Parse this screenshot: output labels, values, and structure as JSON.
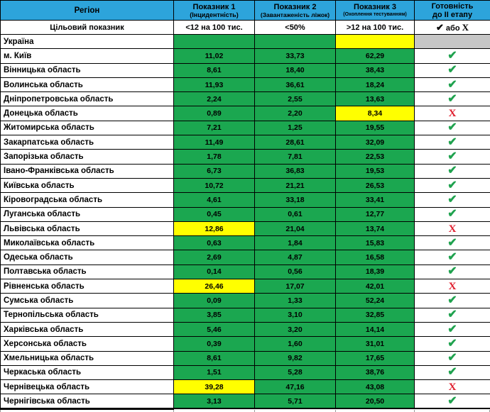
{
  "colors": {
    "header_blue": "#2DA4DB",
    "cell_green": "#1BA750",
    "cell_yellow": "#FFFF00",
    "cell_gray": "#C6C6C6",
    "check_green": "#1FA24E",
    "cross_red": "#E01F2F"
  },
  "symbols": {
    "check": "✔",
    "cross": "Х"
  },
  "header": {
    "region": "Регіон",
    "col1_title": "Показник 1",
    "col1_sub": "(Інцидентність)",
    "col2_title": "Показник 2",
    "col2_sub": "(Завантаженість ліжок)",
    "col3_title": "Показник 3",
    "col3_sub": "(Охоплення тестуванням)",
    "col4_line1": "Готовність",
    "col4_line2": "до II етапу"
  },
  "target_row": {
    "label": "Цільовий показник",
    "v1": "<12 на 100 тис.",
    "v2": "<50%",
    "v3": ">12 на 100 тис.",
    "v4_check": "✔",
    "v4_text": " або ",
    "v4_cross": "Х"
  },
  "chart_data": {
    "type": "table",
    "columns": [
      "Регіон",
      "Показник 1 (Інцидентність) — цільовий: <12 на 100 тис.",
      "Показник 2 (Завантаженість ліжок) — цільовий: <50%",
      "Показник 3 (Охоплення тестуванням) — цільовий: >12 на 100 тис.",
      "Готовність до II етапу (✔ або Х)"
    ],
    "rows": [
      {
        "region": "Україна",
        "values": [
          null,
          null,
          null
        ],
        "cell_colors": [
          "green",
          "green",
          "yellow"
        ],
        "ready": null
      },
      {
        "region": "м. Київ",
        "values": [
          "11,02",
          "33,73",
          "62,29"
        ],
        "cell_colors": [
          "green",
          "green",
          "green"
        ],
        "ready": true
      },
      {
        "region": "Вінницька область",
        "values": [
          "8,61",
          "18,40",
          "38,43"
        ],
        "cell_colors": [
          "green",
          "green",
          "green"
        ],
        "ready": true
      },
      {
        "region": "Волинська область",
        "values": [
          "11,93",
          "36,61",
          "18,24"
        ],
        "cell_colors": [
          "green",
          "green",
          "green"
        ],
        "ready": true
      },
      {
        "region": "Дніпропетровська область",
        "values": [
          "2,24",
          "2,55",
          "13,63"
        ],
        "cell_colors": [
          "green",
          "green",
          "green"
        ],
        "ready": true
      },
      {
        "region": "Донецька область",
        "values": [
          "0,89",
          "2,20",
          "8,34"
        ],
        "cell_colors": [
          "green",
          "green",
          "yellow"
        ],
        "ready": false
      },
      {
        "region": "Житомирська область",
        "values": [
          "7,21",
          "1,25",
          "19,55"
        ],
        "cell_colors": [
          "green",
          "green",
          "green"
        ],
        "ready": true
      },
      {
        "region": "Закарпатська область",
        "values": [
          "11,49",
          "28,61",
          "32,09"
        ],
        "cell_colors": [
          "green",
          "green",
          "green"
        ],
        "ready": true
      },
      {
        "region": "Запорізька область",
        "values": [
          "1,78",
          "7,81",
          "22,53"
        ],
        "cell_colors": [
          "green",
          "green",
          "green"
        ],
        "ready": true
      },
      {
        "region": "Івано-Франківська область",
        "values": [
          "6,73",
          "36,83",
          "19,53"
        ],
        "cell_colors": [
          "green",
          "green",
          "green"
        ],
        "ready": true
      },
      {
        "region": "Київська область",
        "values": [
          "10,72",
          "21,21",
          "26,53"
        ],
        "cell_colors": [
          "green",
          "green",
          "green"
        ],
        "ready": true
      },
      {
        "region": "Кіровоградська область",
        "values": [
          "4,61",
          "33,18",
          "33,41"
        ],
        "cell_colors": [
          "green",
          "green",
          "green"
        ],
        "ready": true
      },
      {
        "region": "Луганська область",
        "values": [
          "0,45",
          "0,61",
          "12,77"
        ],
        "cell_colors": [
          "green",
          "green",
          "green"
        ],
        "ready": true
      },
      {
        "region": "Львівська область",
        "values": [
          "12,86",
          "21,04",
          "13,74"
        ],
        "cell_colors": [
          "yellow",
          "green",
          "green"
        ],
        "ready": false
      },
      {
        "region": "Миколаївська область",
        "values": [
          "0,63",
          "1,84",
          "15,83"
        ],
        "cell_colors": [
          "green",
          "green",
          "green"
        ],
        "ready": true
      },
      {
        "region": "Одеська область",
        "values": [
          "2,69",
          "4,87",
          "16,58"
        ],
        "cell_colors": [
          "green",
          "green",
          "green"
        ],
        "ready": true
      },
      {
        "region": "Полтавська область",
        "values": [
          "0,14",
          "0,56",
          "18,39"
        ],
        "cell_colors": [
          "green",
          "green",
          "green"
        ],
        "ready": true
      },
      {
        "region": "Рівненська область",
        "values": [
          "26,46",
          "17,07",
          "42,01"
        ],
        "cell_colors": [
          "yellow",
          "green",
          "green"
        ],
        "ready": false
      },
      {
        "region": "Сумська область",
        "values": [
          "0,09",
          "1,33",
          "52,24"
        ],
        "cell_colors": [
          "green",
          "green",
          "green"
        ],
        "ready": true
      },
      {
        "region": "Тернопільська область",
        "values": [
          "3,85",
          "3,10",
          "32,85"
        ],
        "cell_colors": [
          "green",
          "green",
          "green"
        ],
        "ready": true
      },
      {
        "region": "Харківська область",
        "values": [
          "5,46",
          "3,20",
          "14,14"
        ],
        "cell_colors": [
          "green",
          "green",
          "green"
        ],
        "ready": true
      },
      {
        "region": "Херсонська область",
        "values": [
          "0,39",
          "1,60",
          "31,01"
        ],
        "cell_colors": [
          "green",
          "green",
          "green"
        ],
        "ready": true
      },
      {
        "region": "Хмельницька область",
        "values": [
          "8,61",
          "9,82",
          "17,65"
        ],
        "cell_colors": [
          "green",
          "green",
          "green"
        ],
        "ready": true
      },
      {
        "region": "Черкаська область",
        "values": [
          "1,51",
          "5,28",
          "38,76"
        ],
        "cell_colors": [
          "green",
          "green",
          "green"
        ],
        "ready": true
      },
      {
        "region": "Чернівецька область",
        "values": [
          "39,28",
          "47,16",
          "43,08"
        ],
        "cell_colors": [
          "yellow",
          "green",
          "green"
        ],
        "ready": false
      },
      {
        "region": "Чернігівська область",
        "values": [
          "3,13",
          "5,71",
          "20,50"
        ],
        "cell_colors": [
          "green",
          "green",
          "green"
        ],
        "ready": true
      }
    ]
  }
}
